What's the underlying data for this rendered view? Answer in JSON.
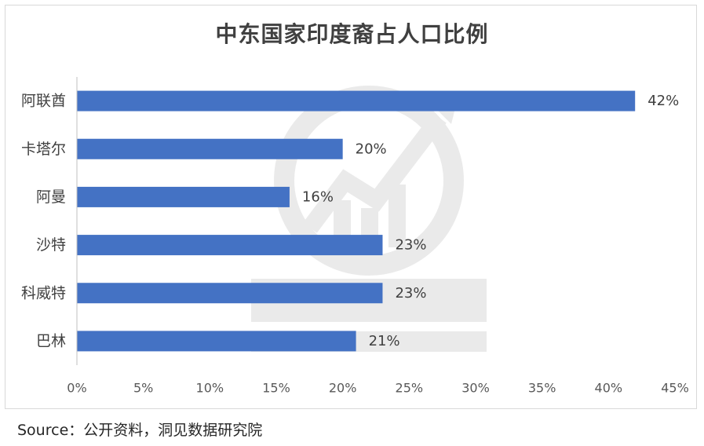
{
  "chart_data": {
    "type": "bar",
    "orientation": "horizontal",
    "title": "中东国家印度裔占人口比例",
    "categories": [
      "阿联酋",
      "卡塔尔",
      "阿曼",
      "沙特",
      "科威特",
      "巴林"
    ],
    "values": [
      42,
      20,
      16,
      23,
      23,
      21
    ],
    "value_labels": [
      "42%",
      "20%",
      "16%",
      "23%",
      "23%",
      "21%"
    ],
    "xlim": [
      0,
      45
    ],
    "x_ticks": [
      0,
      5,
      10,
      15,
      20,
      25,
      30,
      35,
      40,
      45
    ],
    "x_tick_labels": [
      "0%",
      "5%",
      "10%",
      "15%",
      "20%",
      "25%",
      "30%",
      "35%",
      "40%",
      "45%"
    ],
    "grid": false,
    "legend": "none",
    "bar_color": "#4472c4"
  },
  "source": "Source：公开资料，洞见数据研究院"
}
